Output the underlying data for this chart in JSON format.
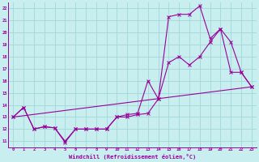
{
  "xlabel": "Windchill (Refroidissement éolien,°C)",
  "xlim": [
    -0.5,
    23.5
  ],
  "ylim": [
    10.5,
    22.5
  ],
  "xticks": [
    0,
    1,
    2,
    3,
    4,
    5,
    6,
    7,
    8,
    9,
    10,
    11,
    12,
    13,
    14,
    15,
    16,
    17,
    18,
    19,
    20,
    21,
    22,
    23
  ],
  "yticks": [
    11,
    12,
    13,
    14,
    15,
    16,
    17,
    18,
    19,
    20,
    21,
    22
  ],
  "bg_color": "#c8eef0",
  "line_color": "#990099",
  "grid_color": "#a0d8d8",
  "line1_x": [
    0,
    1,
    2,
    3,
    4,
    5,
    6,
    7,
    8,
    9,
    10,
    11,
    12,
    13,
    14,
    15,
    16,
    17,
    18,
    19,
    20,
    21,
    22,
    23
  ],
  "line1_y": [
    13.0,
    13.8,
    12.0,
    12.2,
    12.1,
    11.0,
    12.0,
    12.0,
    12.0,
    12.0,
    13.0,
    13.0,
    13.2,
    13.3,
    14.5,
    17.5,
    18.0,
    17.3,
    18.0,
    19.2,
    20.3,
    19.2,
    16.7,
    15.5
  ],
  "line2_x": [
    0,
    1,
    2,
    3,
    4,
    5,
    6,
    7,
    8,
    9,
    10,
    11,
    12,
    13,
    14,
    15,
    16,
    17,
    18,
    19,
    20,
    21,
    22,
    23
  ],
  "line2_y": [
    13.0,
    13.8,
    12.0,
    12.2,
    12.1,
    10.9,
    12.0,
    12.0,
    12.0,
    12.0,
    13.0,
    13.2,
    13.3,
    16.0,
    14.5,
    21.3,
    21.5,
    21.5,
    22.2,
    19.5,
    20.3,
    16.7,
    16.7,
    15.5
  ],
  "line3_x": [
    0,
    23
  ],
  "line3_y": [
    13.0,
    15.5
  ]
}
